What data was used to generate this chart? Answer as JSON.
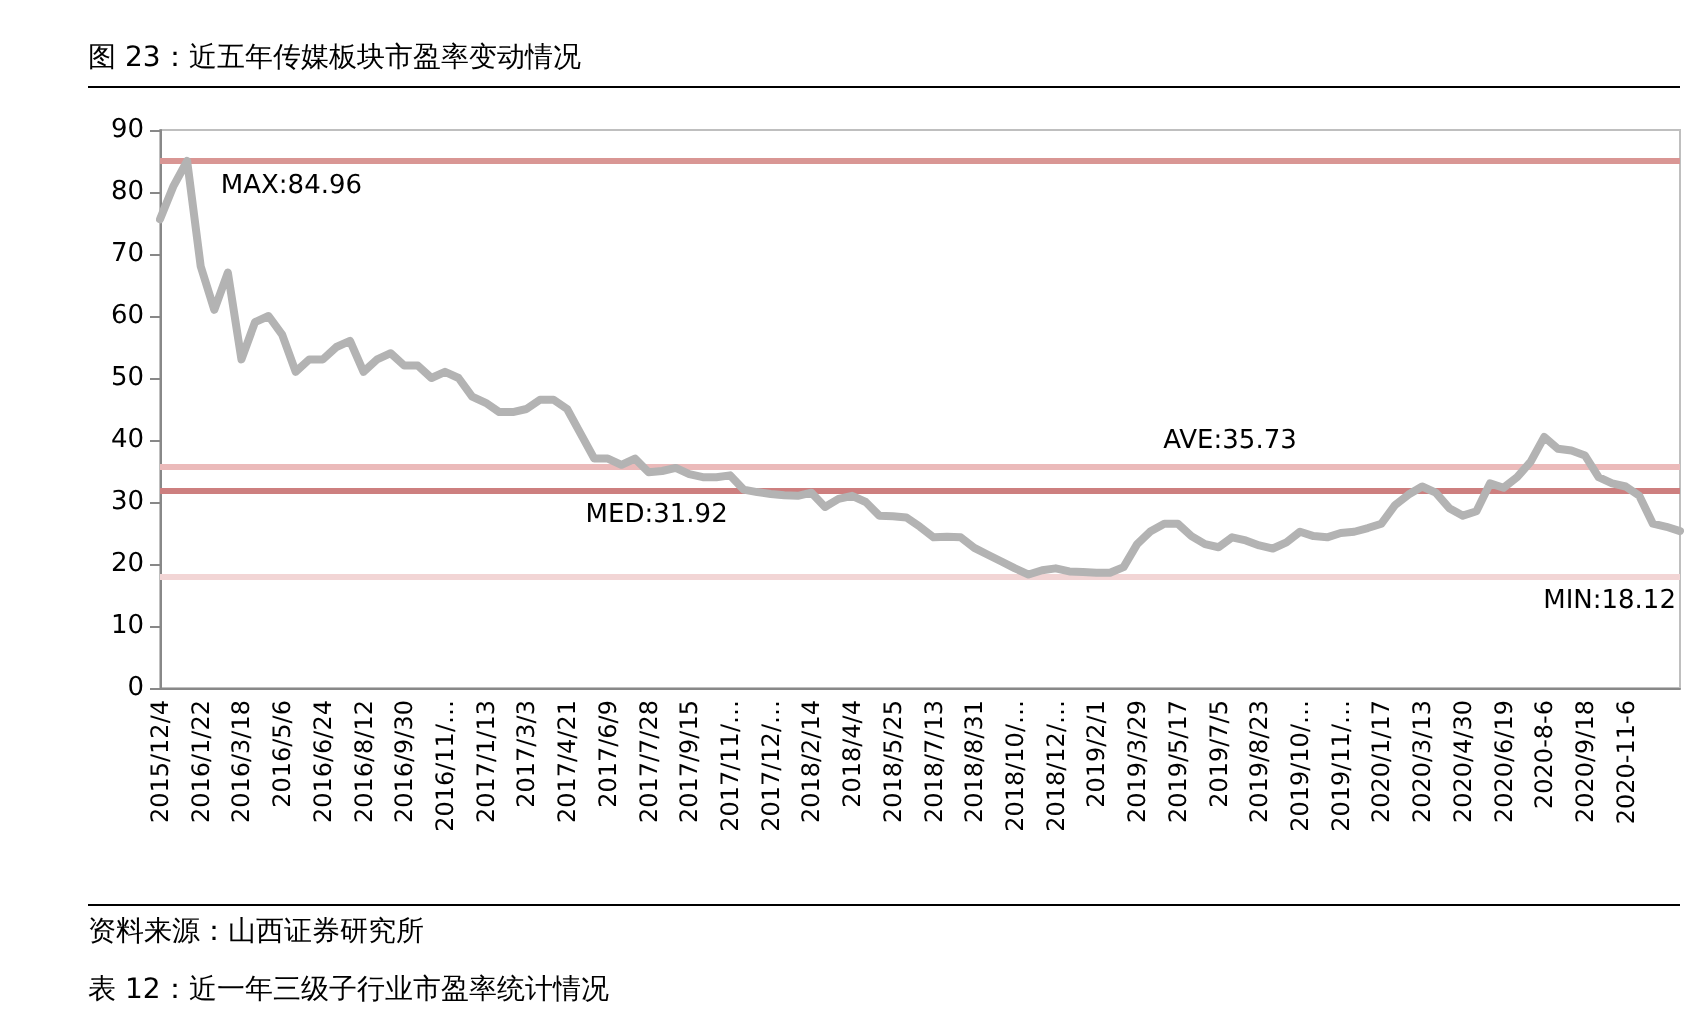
{
  "chart_data": {
    "type": "line",
    "title": "图 23：近五年传媒板块市盈率变动情况",
    "categories": [
      "2015/12/4",
      null,
      null,
      "2016/1/22",
      null,
      null,
      "2016/3/18",
      null,
      null,
      "2016/5/6",
      null,
      null,
      "2016/6/24",
      null,
      null,
      "2016/8/12",
      null,
      null,
      "2016/9/30",
      null,
      null,
      "2016/11/…",
      null,
      null,
      "2017/1/13",
      null,
      null,
      "2017/3/3",
      null,
      null,
      "2017/4/21",
      null,
      null,
      "2017/6/9",
      null,
      null,
      "2017/7/28",
      null,
      null,
      "2017/9/15",
      null,
      null,
      "2017/11/…",
      null,
      null,
      "2017/12/…",
      null,
      null,
      "2018/2/14",
      null,
      null,
      "2018/4/4",
      null,
      null,
      "2018/5/25",
      null,
      null,
      "2018/7/13",
      null,
      null,
      "2018/8/31",
      null,
      null,
      "2018/10/…",
      null,
      null,
      "2018/12/…",
      null,
      null,
      "2019/2/1",
      null,
      null,
      "2019/3/29",
      null,
      null,
      "2019/5/17",
      null,
      null,
      "2019/7/5",
      null,
      null,
      "2019/8/23",
      null,
      null,
      "2019/10/…",
      null,
      null,
      "2019/11/…",
      null,
      null,
      "2020/1/17",
      null,
      null,
      "2020/3/13",
      null,
      null,
      "2020/4/30",
      null,
      null,
      "2020/6/19",
      null,
      null,
      "2020-8-6",
      null,
      null,
      "2020/9/18",
      null,
      null,
      "2020-11-6",
      null,
      null,
      null,
      null
    ],
    "series": [
      {
        "color": "#b3b3b3",
        "values": [
          75.6,
          81,
          85,
          68,
          61,
          67,
          53,
          59,
          60,
          57,
          51,
          53,
          53,
          55,
          56,
          51,
          53,
          54,
          52,
          52,
          50,
          51,
          50,
          47,
          46,
          44.5,
          44.5,
          45,
          46.5,
          46.5,
          45,
          41,
          37,
          37,
          36,
          37,
          34.8,
          35,
          35.5,
          34.5,
          34,
          34,
          34.3,
          32,
          31.6,
          31.3,
          31.1,
          31,
          31.5,
          29.2,
          30.5,
          31,
          30,
          27.8,
          27.7,
          27.5,
          26,
          24.3,
          24.4,
          24.3,
          22.6,
          21.5,
          20.4,
          19.3,
          18.3,
          19,
          19.3,
          18.8,
          18.7,
          18.6,
          18.6,
          19.5,
          23.2,
          25.3,
          26.5,
          26.5,
          24.5,
          23.2,
          22.7,
          24.3,
          23.8,
          23,
          22.5,
          23.5,
          25.2,
          24.5,
          24.3,
          25,
          25.2,
          25.8,
          26.5,
          29.5,
          31.2,
          32.5,
          31.5,
          29,
          27.8,
          28.5,
          33,
          32.3,
          34,
          36.5,
          40.5,
          38.6,
          38.3,
          37.5,
          34,
          33,
          32.5,
          31,
          26.5,
          26,
          25.3
        ]
      }
    ],
    "ylim": [
      0,
      90
    ],
    "yticks": [
      0,
      10,
      20,
      30,
      40,
      50,
      60,
      70,
      80,
      90
    ],
    "grid": false,
    "marker": "none",
    "line_style": "solid",
    "ref_lines": [
      {
        "axis": "y",
        "value": 84.96,
        "label": "MAX:84.96",
        "color": "#d99694"
      },
      {
        "axis": "y",
        "value": 35.73,
        "label": "AVE:35.73",
        "color": "#ebbaba"
      },
      {
        "axis": "y",
        "value": 31.92,
        "label": "MED:31.92",
        "color": "#cd7f7f"
      },
      {
        "axis": "y",
        "value": 18.12,
        "label": "MIN:18.12",
        "color": "#f2d5d5"
      }
    ],
    "annotations": [
      "资料来源：山西证券研究所",
      "表 12：近一年三级子行业市盈率统计情况"
    ]
  }
}
